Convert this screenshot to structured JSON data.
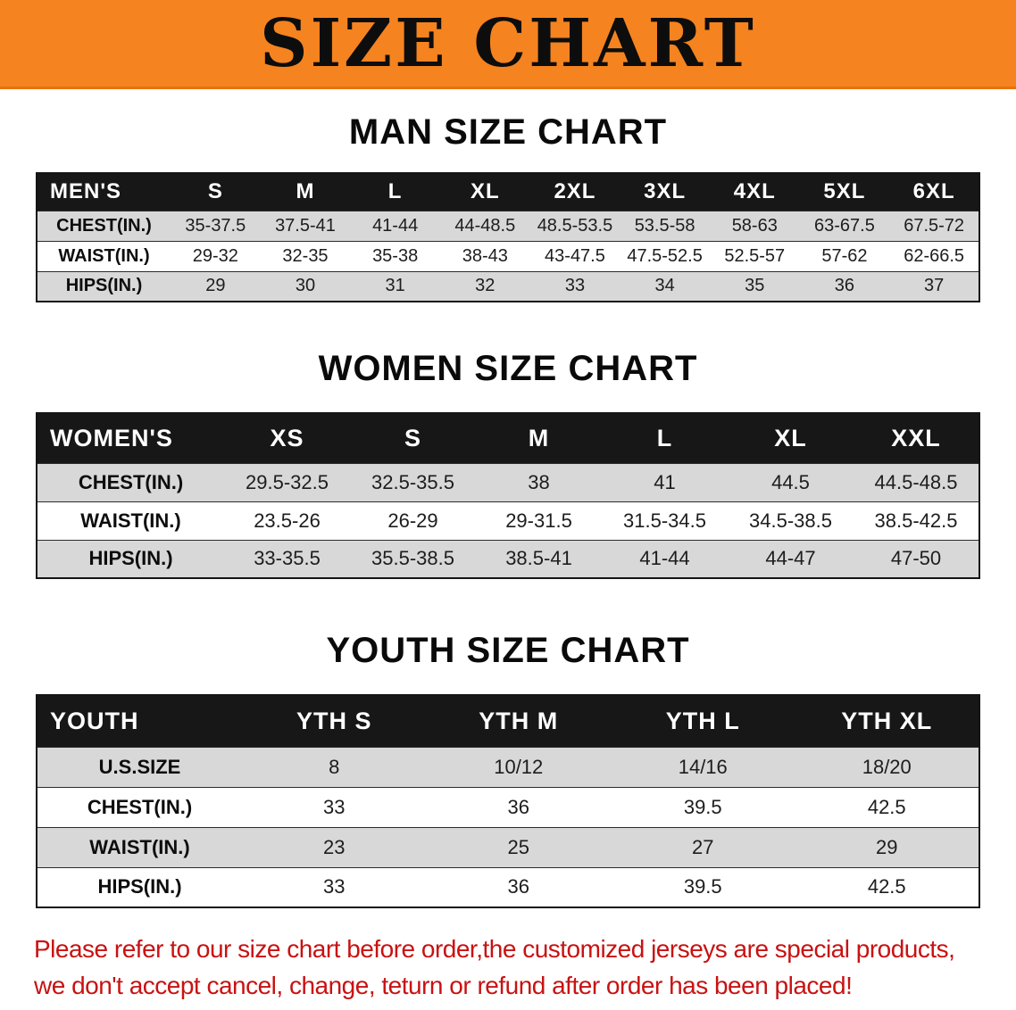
{
  "banner": {
    "title": "SIZE CHART",
    "bg_color": "#f5831f",
    "text_color": "#0d0d0d"
  },
  "men": {
    "heading": "MAN SIZE CHART",
    "table": {
      "header": [
        "MEN'S",
        "S",
        "M",
        "L",
        "XL",
        "2XL",
        "3XL",
        "4XL",
        "5XL",
        "6XL"
      ],
      "rows": [
        [
          "CHEST(IN.)",
          "35-37.5",
          "37.5-41",
          "41-44",
          "44-48.5",
          "48.5-53.5",
          "53.5-58",
          "58-63",
          "63-67.5",
          "67.5-72"
        ],
        [
          "WAIST(IN.)",
          "29-32",
          "32-35",
          "35-38",
          "38-43",
          "43-47.5",
          "47.5-52.5",
          "52.5-57",
          "57-62",
          "62-66.5"
        ],
        [
          "HIPS(IN.)",
          "29",
          "30",
          "31",
          "32",
          "33",
          "34",
          "35",
          "36",
          "37"
        ]
      ]
    }
  },
  "women": {
    "heading": "WOMEN SIZE CHART",
    "table": {
      "header": [
        "WOMEN'S",
        "XS",
        "S",
        "M",
        "L",
        "XL",
        "XXL"
      ],
      "rows": [
        [
          "CHEST(IN.)",
          "29.5-32.5",
          "32.5-35.5",
          "38",
          "41",
          "44.5",
          "44.5-48.5"
        ],
        [
          "WAIST(IN.)",
          "23.5-26",
          "26-29",
          "29-31.5",
          "31.5-34.5",
          "34.5-38.5",
          "38.5-42.5"
        ],
        [
          "HIPS(IN.)",
          "33-35.5",
          "35.5-38.5",
          "38.5-41",
          "41-44",
          "44-47",
          "47-50"
        ]
      ]
    }
  },
  "youth": {
    "heading": "YOUTH SIZE CHART",
    "table": {
      "header": [
        "YOUTH",
        "YTH S",
        "YTH M",
        "YTH L",
        "YTH XL"
      ],
      "rows": [
        [
          "U.S.SIZE",
          "8",
          "10/12",
          "14/16",
          "18/20"
        ],
        [
          "CHEST(IN.)",
          "33",
          "36",
          "39.5",
          "42.5"
        ],
        [
          "WAIST(IN.)",
          "23",
          "25",
          "27",
          "29"
        ],
        [
          "HIPS(IN.)",
          "33",
          "36",
          "39.5",
          "42.5"
        ]
      ]
    }
  },
  "footer": {
    "line1": "Please refer to our size chart before order,the customized jerseys are special products,",
    "line2": "we don't accept cancel, change, teturn or refund after order has been placed!",
    "text_color": "#c81212"
  }
}
